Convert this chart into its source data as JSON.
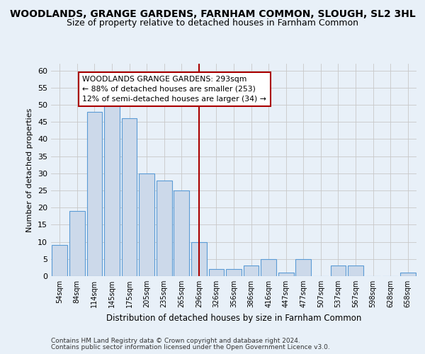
{
  "title": "WOODLANDS, GRANGE GARDENS, FARNHAM COMMON, SLOUGH, SL2 3HL",
  "subtitle": "Size of property relative to detached houses in Farnham Common",
  "xlabel": "Distribution of detached houses by size in Farnham Common",
  "ylabel": "Number of detached properties",
  "bar_labels": [
    "54sqm",
    "84sqm",
    "114sqm",
    "145sqm",
    "175sqm",
    "205sqm",
    "235sqm",
    "265sqm",
    "296sqm",
    "326sqm",
    "356sqm",
    "386sqm",
    "416sqm",
    "447sqm",
    "477sqm",
    "507sqm",
    "537sqm",
    "567sqm",
    "598sqm",
    "628sqm",
    "658sqm"
  ],
  "bar_values": [
    9,
    19,
    48,
    50,
    46,
    30,
    28,
    25,
    10,
    2,
    2,
    3,
    5,
    1,
    5,
    0,
    3,
    3,
    0,
    0,
    1
  ],
  "bar_color": "#ccd9ea",
  "bar_edge_color": "#5b9bd5",
  "grid_color": "#c8c8c8",
  "vline_index": 8,
  "vline_color": "#aa0000",
  "annotation_text": "WOODLANDS GRANGE GARDENS: 293sqm\n← 88% of detached houses are smaller (253)\n12% of semi-detached houses are larger (34) →",
  "annotation_box_color": "#ffffff",
  "annotation_box_edge": "#aa0000",
  "ylim": [
    0,
    62
  ],
  "yticks": [
    0,
    5,
    10,
    15,
    20,
    25,
    30,
    35,
    40,
    45,
    50,
    55,
    60
  ],
  "footnote1": "Contains HM Land Registry data © Crown copyright and database right 2024.",
  "footnote2": "Contains public sector information licensed under the Open Government Licence v3.0.",
  "background_color": "#e8f0f8",
  "title_fontsize": 10,
  "subtitle_fontsize": 9,
  "footnote_fontsize": 6.5
}
